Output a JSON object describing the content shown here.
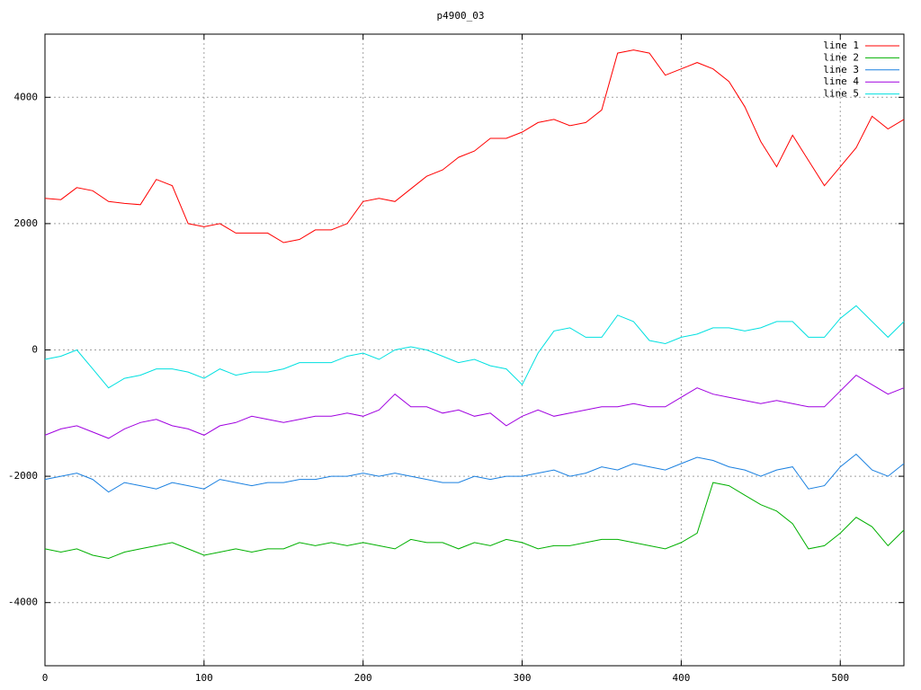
{
  "chart_data": {
    "type": "line",
    "title": "p4900_03",
    "x": [
      0,
      10,
      20,
      30,
      40,
      50,
      60,
      70,
      80,
      90,
      100,
      110,
      120,
      130,
      140,
      150,
      160,
      170,
      180,
      190,
      200,
      210,
      220,
      230,
      240,
      250,
      260,
      270,
      280,
      290,
      300,
      310,
      320,
      330,
      340,
      350,
      360,
      370,
      380,
      390,
      400,
      410,
      420,
      430,
      440,
      450,
      460,
      470,
      480,
      490,
      500,
      510,
      520,
      530,
      540
    ],
    "series": [
      {
        "name": "line 1",
        "color": "#ff0000",
        "values": [
          2400,
          2380,
          2570,
          2520,
          2350,
          2320,
          2300,
          2700,
          2600,
          2000,
          1950,
          2000,
          1850,
          1850,
          1850,
          1700,
          1750,
          1900,
          1900,
          2000,
          2350,
          2400,
          2350,
          2550,
          2750,
          2850,
          3050,
          3150,
          3350,
          3350,
          3450,
          3600,
          3650,
          3550,
          3600,
          3800,
          4700,
          4750,
          4700,
          4350,
          4450,
          4550,
          4450,
          4250,
          3850,
          3300,
          2900,
          3400,
          3000,
          2600,
          2900,
          3200,
          3700,
          3500,
          3650
        ]
      },
      {
        "name": "line 2",
        "color": "#00b000",
        "values": [
          -3150,
          -3200,
          -3150,
          -3250,
          -3300,
          -3200,
          -3150,
          -3100,
          -3050,
          -3150,
          -3250,
          -3200,
          -3150,
          -3200,
          -3150,
          -3150,
          -3050,
          -3100,
          -3050,
          -3100,
          -3050,
          -3100,
          -3150,
          -3000,
          -3050,
          -3050,
          -3150,
          -3050,
          -3100,
          -3000,
          -3050,
          -3150,
          -3100,
          -3100,
          -3050,
          -3000,
          -3000,
          -3050,
          -3100,
          -3150,
          -3050,
          -2900,
          -2100,
          -2150,
          -2300,
          -2450,
          -2550,
          -2750,
          -3150,
          -3100,
          -2900,
          -2650,
          -2800,
          -3100,
          -2850
        ]
      },
      {
        "name": "line 3",
        "color": "#1a80e0",
        "values": [
          -2050,
          -2000,
          -1950,
          -2050,
          -2250,
          -2100,
          -2150,
          -2200,
          -2100,
          -2150,
          -2200,
          -2050,
          -2100,
          -2150,
          -2100,
          -2100,
          -2050,
          -2050,
          -2000,
          -2000,
          -1950,
          -2000,
          -1950,
          -2000,
          -2050,
          -2100,
          -2100,
          -2000,
          -2050,
          -2000,
          -2000,
          -1950,
          -1900,
          -2000,
          -1950,
          -1850,
          -1900,
          -1800,
          -1850,
          -1900,
          -1800,
          -1700,
          -1750,
          -1850,
          -1900,
          -2000,
          -1900,
          -1850,
          -2200,
          -2150,
          -1850,
          -1650,
          -1900,
          -2000,
          -1800
        ]
      },
      {
        "name": "line 4",
        "color": "#a000e0",
        "values": [
          -1350,
          -1250,
          -1200,
          -1300,
          -1400,
          -1250,
          -1150,
          -1100,
          -1200,
          -1250,
          -1350,
          -1200,
          -1150,
          -1050,
          -1100,
          -1150,
          -1100,
          -1050,
          -1050,
          -1000,
          -1050,
          -950,
          -700,
          -900,
          -900,
          -1000,
          -950,
          -1050,
          -1000,
          -1200,
          -1050,
          -950,
          -1050,
          -1000,
          -950,
          -900,
          -900,
          -850,
          -900,
          -900,
          -750,
          -600,
          -700,
          -750,
          -800,
          -850,
          -800,
          -850,
          -900,
          -900,
          -650,
          -400,
          -550,
          -700,
          -600
        ]
      },
      {
        "name": "line 5",
        "color": "#00e0e0",
        "values": [
          -150,
          -100,
          0,
          -300,
          -600,
          -450,
          -400,
          -300,
          -300,
          -350,
          -450,
          -300,
          -400,
          -350,
          -350,
          -300,
          -200,
          -200,
          -200,
          -100,
          -50,
          -150,
          0,
          50,
          0,
          -100,
          -200,
          -150,
          -250,
          -300,
          -550,
          -50,
          300,
          350,
          200,
          200,
          550,
          450,
          150,
          100,
          200,
          250,
          350,
          350,
          300,
          350,
          450,
          450,
          200,
          200,
          500,
          700,
          450,
          200,
          450
        ]
      }
    ],
    "xlim": [
      0,
      540
    ],
    "ylim": [
      -5000,
      5000
    ],
    "xticks": [
      0,
      100,
      200,
      300,
      400,
      500
    ],
    "yticks": [
      -4000,
      -2000,
      0,
      2000,
      4000
    ],
    "grid": true,
    "legend": "top-right"
  }
}
